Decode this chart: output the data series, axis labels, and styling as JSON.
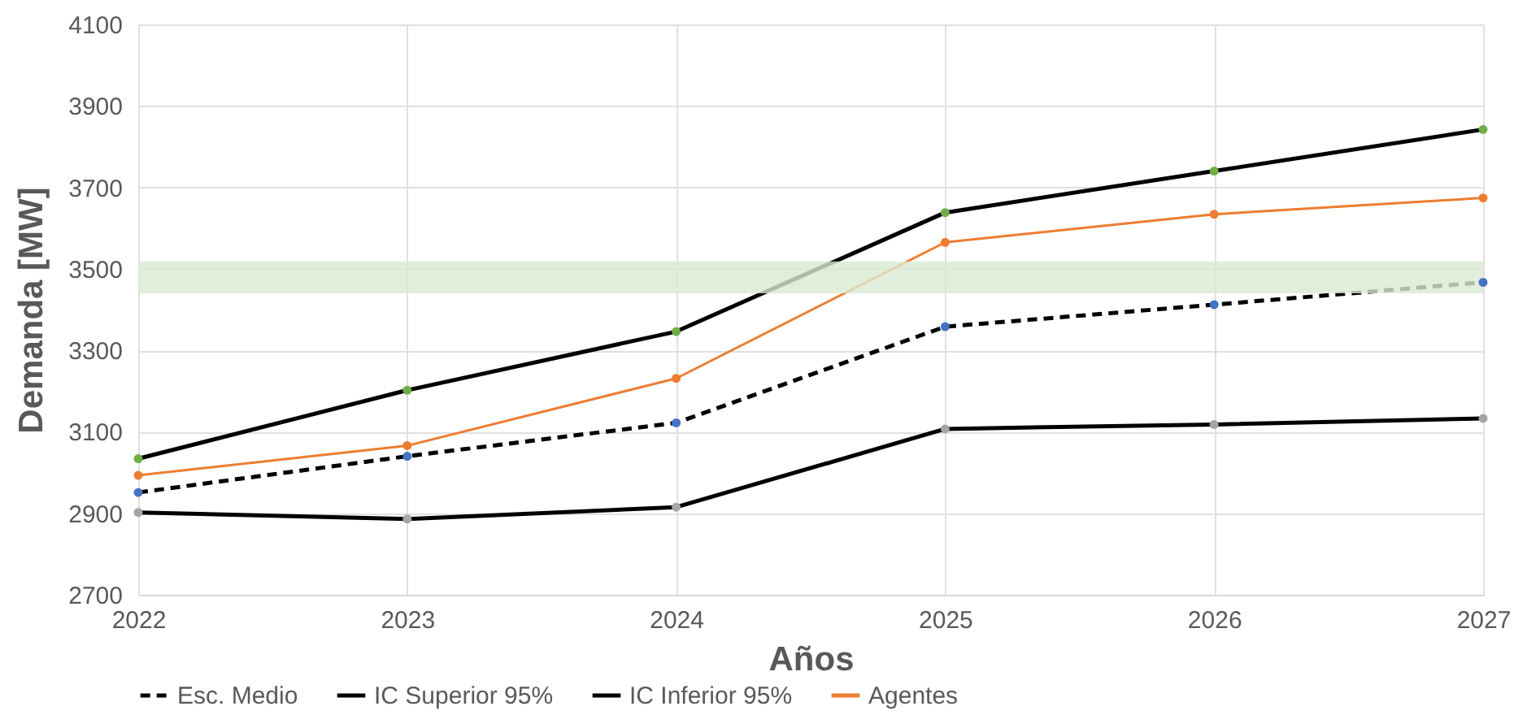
{
  "chart_data": {
    "type": "line",
    "xlabel": "Años",
    "ylabel": "Demanda [MW]",
    "categories": [
      "2022",
      "2023",
      "2024",
      "2025",
      "2026",
      "2027"
    ],
    "series": [
      {
        "name": "Esc. Medio",
        "color": "#000000",
        "line_style": "dashed",
        "colors": [
          "#4472c4",
          "#4472c4",
          "#4472c4",
          "#4472c4",
          "#4472c4",
          "#4472c4"
        ],
        "values": [
          2951,
          3040,
          3122,
          3358,
          3412,
          3467
        ]
      },
      {
        "name": "IC Superior 95%",
        "color": "#000000",
        "line_style": "solid",
        "colors": [
          "#70ad47",
          "#70ad47",
          "#70ad47",
          "#70ad47",
          "#70ad47",
          "#70ad47"
        ],
        "values": [
          3034,
          3202,
          3346,
          3638,
          3740,
          3842
        ]
      },
      {
        "name": "IC Inferior 95%",
        "color": "#000000",
        "line_style": "solid",
        "colors": [
          "#a5a5a5",
          "#a5a5a5",
          "#a5a5a5",
          "#a5a5a5",
          "#a5a5a5",
          "#a5a5a5"
        ],
        "values": [
          2902,
          2886,
          2915,
          3107,
          3118,
          3133
        ]
      },
      {
        "name": "Agentes",
        "color": "#ed7d31",
        "line_style": "solid",
        "colors": [
          "#ed7d31",
          "#ed7d31",
          "#ed7d31",
          "#ed7d31",
          "#ed7d31",
          "#ed7d31"
        ],
        "values": [
          2993,
          3066,
          3231,
          3565,
          3634,
          3674
        ]
      }
    ],
    "bands": [
      {
        "axis": "y",
        "from": 3440,
        "to": 3518,
        "color": "#d9ead3"
      }
    ],
    "ylim": [
      2700,
      4100
    ],
    "yticks": [
      2700,
      2900,
      3100,
      3300,
      3500,
      3700,
      3900,
      4100
    ],
    "grid": true,
    "legend": "bottom",
    "marker": "circle"
  }
}
